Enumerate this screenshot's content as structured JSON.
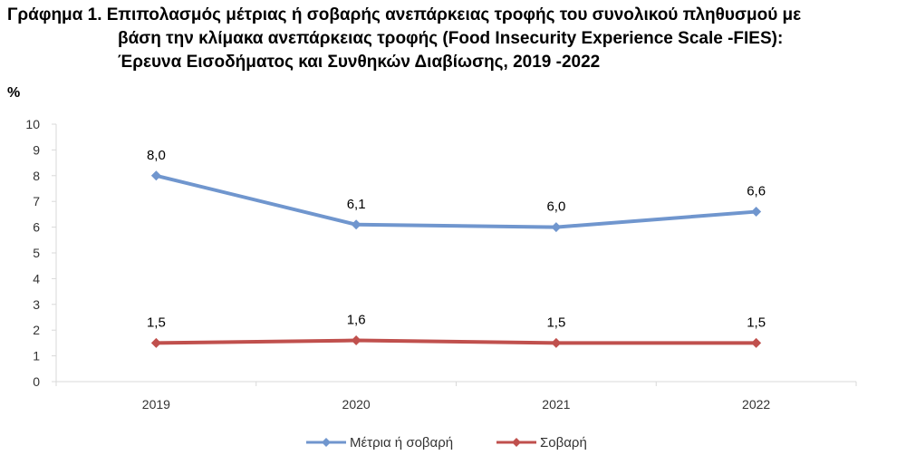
{
  "title": {
    "line1": "Γράφημα 1. Επιπολασμός μέτριας ή σοβαρής ανεπάρκειας τροφής του συνολικού πληθυσμού με",
    "line2": "βάση την κλίμακα ανεπάρκειας τροφής (Food Insecurity Experience Scale -FIES):",
    "line3": "Έρευνα Εισοδήματος και Συνθηκών Διαβίωσης, 2019 -2022"
  },
  "chart_data": {
    "type": "line",
    "ylabel": "%",
    "xlabel": "",
    "categories": [
      "2019",
      "2020",
      "2021",
      "2022"
    ],
    "ylim": [
      0,
      10
    ],
    "yticks": [
      0,
      1,
      2,
      3,
      4,
      5,
      6,
      7,
      8,
      9,
      10
    ],
    "grid": false,
    "legend": "bottom",
    "series": [
      {
        "name": "Μέτρια ή σοβαρή",
        "values": [
          8.0,
          6.1,
          6.0,
          6.6
        ],
        "labels": [
          "8,0",
          "6,1",
          "6,0",
          "6,6"
        ],
        "color": "#7096CE",
        "marker": "diamond"
      },
      {
        "name": "Σοβαρή",
        "values": [
          1.5,
          1.6,
          1.5,
          1.5
        ],
        "labels": [
          "1,5",
          "1,6",
          "1,5",
          "1,5"
        ],
        "color": "#C0504D",
        "marker": "diamond"
      }
    ]
  }
}
